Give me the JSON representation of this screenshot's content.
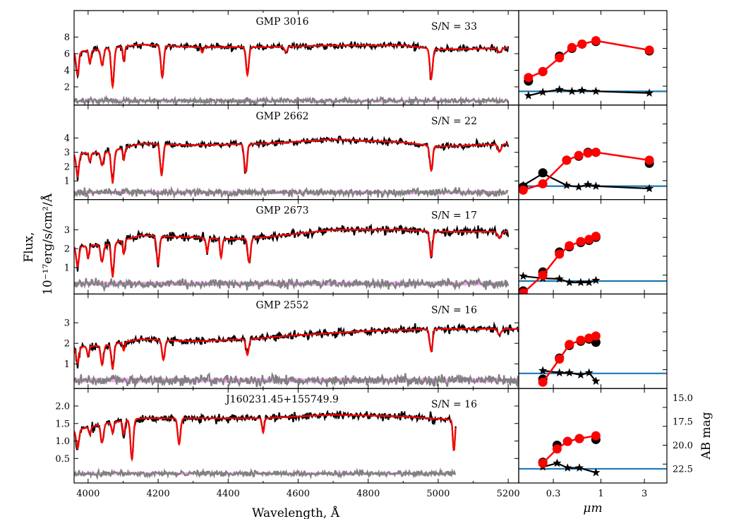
{
  "chart_data": {
    "type": "line",
    "ylabel_line1": "Flux,",
    "ylabel_line2": "10⁻¹⁷erg/s/cm²/Å",
    "xlabel_spec": "Wavelength, Å",
    "xlabel_sed": "μm",
    "ylabel_sed_right": "AB mag",
    "spectrum_xlim": [
      3960,
      5230
    ],
    "spectrum_xticks": [
      4000,
      4200,
      4400,
      4600,
      4800,
      5000,
      5200
    ],
    "sed_xlim": [
      0.125,
      5.3
    ],
    "sed_xticks": [
      {
        "value": 0.3,
        "label": "0.3"
      },
      {
        "value": 1,
        "label": "1"
      },
      {
        "value": 3,
        "label": "3"
      }
    ],
    "mag_ticks": [
      {
        "value": 15.0,
        "label": "15.0"
      },
      {
        "value": 17.5,
        "label": "17.5"
      },
      {
        "value": 20.0,
        "label": "20.0"
      },
      {
        "value": 22.5,
        "label": "22.5"
      }
    ],
    "colors": {
      "observed": "#000000",
      "model": "#ff0000",
      "residual": "#808080",
      "error": "#ee55ee",
      "level": "#1f77b4"
    },
    "panels": [
      {
        "name": "GMP 3016",
        "sn": "S/N = 33",
        "ylim": [
          -0.2,
          11.2
        ],
        "yticks": [
          {
            "value": 2,
            "label": "2"
          },
          {
            "value": 4,
            "label": "4"
          },
          {
            "value": 6,
            "label": "6"
          },
          {
            "value": 8,
            "label": "8"
          }
        ],
        "wave_range": [
          3960,
          5200
        ],
        "continuum": [
          [
            3960,
            6.2
          ],
          [
            4050,
            6.6
          ],
          [
            4150,
            7.1
          ],
          [
            4300,
            6.8
          ],
          [
            4500,
            6.8
          ],
          [
            4700,
            7.0
          ],
          [
            4900,
            7.0
          ],
          [
            5000,
            6.5
          ],
          [
            5200,
            6.7
          ]
        ],
        "absorption": [
          [
            3970,
            0.45,
            4
          ],
          [
            4005,
            0.25,
            3
          ],
          [
            4040,
            0.3,
            4
          ],
          [
            4070,
            0.7,
            4
          ],
          [
            4102,
            0.25,
            3
          ],
          [
            4212,
            0.55,
            4
          ],
          [
            4326,
            0.1,
            3
          ],
          [
            4455,
            0.5,
            4
          ],
          [
            4565,
            0.1,
            4
          ],
          [
            4980,
            0.55,
            4
          ],
          [
            5175,
            0.08,
            5
          ]
        ],
        "noise": 0.22,
        "resid_level": 0.3,
        "resid_noise": 0.25,
        "seed": 11,
        "sed_ylim": [
          0,
          11
        ],
        "sed_model": [
          [
            0.16,
            3.2
          ],
          [
            0.23,
            3.9
          ],
          [
            0.35,
            5.5
          ],
          [
            0.48,
            6.7
          ],
          [
            0.62,
            7.1
          ],
          [
            0.88,
            7.5
          ],
          [
            3.4,
            6.4
          ]
        ],
        "sed_obs": [
          [
            0.16,
            2.8
          ],
          [
            0.23,
            3.9
          ],
          [
            0.35,
            5.7
          ],
          [
            0.48,
            6.6
          ],
          [
            0.62,
            7.1
          ],
          [
            0.88,
            7.4
          ],
          [
            3.4,
            6.3
          ]
        ],
        "sed_star": [
          [
            0.16,
            1.1
          ],
          [
            0.23,
            1.5
          ],
          [
            0.35,
            1.8
          ],
          [
            0.48,
            1.6
          ],
          [
            0.62,
            1.7
          ],
          [
            0.88,
            1.6
          ],
          [
            3.4,
            1.4
          ]
        ],
        "sed_level": 1.6
      },
      {
        "name": "GMP 2662",
        "sn": "S/N = 22",
        "ylim": [
          -0.3,
          6.3
        ],
        "yticks": [
          {
            "value": 1,
            "label": "1"
          },
          {
            "value": 2,
            "label": "2"
          },
          {
            "value": 3,
            "label": "3"
          },
          {
            "value": 4,
            "label": "4"
          }
        ],
        "wave_range": [
          3960,
          5200
        ],
        "continuum": [
          [
            3960,
            2.9
          ],
          [
            4050,
            3.0
          ],
          [
            4150,
            3.6
          ],
          [
            4300,
            3.5
          ],
          [
            4500,
            3.6
          ],
          [
            4700,
            3.9
          ],
          [
            4900,
            3.7
          ],
          [
            5000,
            3.4
          ],
          [
            5200,
            3.6
          ]
        ],
        "absorption": [
          [
            3970,
            0.55,
            4
          ],
          [
            4005,
            0.2,
            3
          ],
          [
            4040,
            0.3,
            4
          ],
          [
            4070,
            0.7,
            4
          ],
          [
            4102,
            0.25,
            3
          ],
          [
            4210,
            0.6,
            4
          ],
          [
            4450,
            0.55,
            4
          ],
          [
            4980,
            0.5,
            4
          ],
          [
            5175,
            0.15,
            5
          ]
        ],
        "noise": 0.14,
        "resid_level": 0.2,
        "resid_noise": 0.18,
        "seed": 23,
        "sed_ylim": [
          0,
          6
        ],
        "sed_model": [
          [
            0.14,
            0.6
          ],
          [
            0.23,
            1.0
          ],
          [
            0.42,
            2.5
          ],
          [
            0.57,
            2.8
          ],
          [
            0.72,
            2.95
          ],
          [
            0.88,
            3.0
          ],
          [
            3.4,
            2.5
          ]
        ],
        "sed_obs": [
          [
            0.14,
            0.8
          ],
          [
            0.23,
            1.7
          ],
          [
            0.42,
            2.5
          ],
          [
            0.57,
            2.75
          ],
          [
            0.72,
            3.0
          ],
          [
            0.88,
            3.0
          ],
          [
            3.4,
            2.3
          ]
        ],
        "sed_star": [
          [
            0.14,
            0.9
          ],
          [
            0.23,
            1.65
          ],
          [
            0.42,
            0.9
          ],
          [
            0.57,
            0.8
          ],
          [
            0.72,
            0.95
          ],
          [
            0.88,
            0.85
          ],
          [
            3.4,
            0.7
          ]
        ],
        "sed_level": 0.85
      },
      {
        "name": "GMP 2673",
        "sn": "S/N = 17",
        "ylim": [
          -0.4,
          4.6
        ],
        "yticks": [
          {
            "value": 1,
            "label": "1"
          },
          {
            "value": 2,
            "label": "2"
          },
          {
            "value": 3,
            "label": "3"
          }
        ],
        "wave_range": [
          3960,
          5200
        ],
        "continuum": [
          [
            3960,
            2.1
          ],
          [
            4050,
            2.2
          ],
          [
            4150,
            2.7
          ],
          [
            4300,
            2.6
          ],
          [
            4400,
            2.5
          ],
          [
            4500,
            2.6
          ],
          [
            4700,
            3.0
          ],
          [
            4900,
            3.0
          ],
          [
            5000,
            2.9
          ],
          [
            5200,
            2.9
          ]
        ],
        "absorption": [
          [
            3970,
            0.5,
            4
          ],
          [
            4000,
            0.3,
            3
          ],
          [
            4040,
            0.4,
            4
          ],
          [
            4070,
            0.75,
            4
          ],
          [
            4102,
            0.3,
            3
          ],
          [
            4200,
            0.55,
            4
          ],
          [
            4340,
            0.3,
            3
          ],
          [
            4380,
            0.4,
            3
          ],
          [
            4460,
            0.5,
            4
          ],
          [
            4980,
            0.45,
            4
          ],
          [
            5175,
            0.12,
            5
          ]
        ],
        "noise": 0.14,
        "resid_level": 0.15,
        "resid_noise": 0.17,
        "seed": 37,
        "sed_ylim": [
          0,
          4.5
        ],
        "sed_model": [
          [
            0.14,
            0.05
          ],
          [
            0.23,
            0.9
          ],
          [
            0.35,
            1.9
          ],
          [
            0.45,
            2.3
          ],
          [
            0.6,
            2.5
          ],
          [
            0.74,
            2.6
          ],
          [
            0.88,
            2.75
          ]
        ],
        "sed_obs": [
          [
            0.14,
            0.15
          ],
          [
            0.23,
            1.05
          ],
          [
            0.35,
            2.0
          ],
          [
            0.45,
            2.25
          ],
          [
            0.6,
            2.45
          ],
          [
            0.74,
            2.55
          ],
          [
            0.88,
            2.7
          ]
        ],
        "sed_star": [
          [
            0.14,
            0.85
          ],
          [
            0.23,
            0.75
          ],
          [
            0.35,
            0.72
          ],
          [
            0.45,
            0.55
          ],
          [
            0.6,
            0.55
          ],
          [
            0.74,
            0.55
          ],
          [
            0.88,
            0.65
          ]
        ],
        "sed_level": 0.62
      },
      {
        "name": "GMP 2552",
        "sn": "S/N = 16",
        "ylim": [
          -0.2,
          4.4
        ],
        "yticks": [
          {
            "value": 1,
            "label": "1"
          },
          {
            "value": 2,
            "label": "2"
          },
          {
            "value": 3,
            "label": "3"
          }
        ],
        "wave_range": [
          3960,
          5230
        ],
        "continuum": [
          [
            3960,
            1.8
          ],
          [
            4050,
            1.9
          ],
          [
            4150,
            2.2
          ],
          [
            4300,
            2.1
          ],
          [
            4450,
            2.2
          ],
          [
            4600,
            2.4
          ],
          [
            4800,
            2.6
          ],
          [
            5000,
            2.7
          ],
          [
            5230,
            2.7
          ]
        ],
        "absorption": [
          [
            3970,
            0.45,
            4
          ],
          [
            4000,
            0.25,
            3
          ],
          [
            4040,
            0.5,
            4
          ],
          [
            4070,
            0.6,
            4
          ],
          [
            4102,
            0.2,
            3
          ],
          [
            4215,
            0.45,
            4
          ],
          [
            4455,
            0.35,
            4
          ],
          [
            4980,
            0.4,
            4
          ],
          [
            5175,
            0.1,
            5
          ]
        ],
        "noise": 0.12,
        "resid_level": 0.2,
        "resid_noise": 0.17,
        "seed": 51,
        "sed_ylim": [
          0,
          4.5
        ],
        "sed_model": [
          [
            0.23,
            0.3
          ],
          [
            0.35,
            1.4
          ],
          [
            0.45,
            2.1
          ],
          [
            0.6,
            2.3
          ],
          [
            0.74,
            2.4
          ],
          [
            0.88,
            2.5
          ]
        ],
        "sed_obs": [
          [
            0.23,
            0.45
          ],
          [
            0.35,
            1.45
          ],
          [
            0.45,
            2.05
          ],
          [
            0.6,
            2.25
          ],
          [
            0.74,
            2.35
          ],
          [
            0.88,
            2.2
          ]
        ],
        "sed_star": [
          [
            0.23,
            0.85
          ],
          [
            0.35,
            0.75
          ],
          [
            0.45,
            0.75
          ],
          [
            0.6,
            0.65
          ],
          [
            0.74,
            0.75
          ],
          [
            0.88,
            0.35
          ]
        ],
        "sed_level": 0.72
      },
      {
        "name": "J160231.45+155749.9",
        "sn": "S/N = 16",
        "ylim": [
          -0.2,
          2.5
        ],
        "yticks": [
          {
            "value": 0.5,
            "label": "0.5"
          },
          {
            "value": 1.0,
            "label": "1.0"
          },
          {
            "value": 1.5,
            "label": "1.5"
          },
          {
            "value": 2.0,
            "label": "2.0"
          }
        ],
        "wave_range": [
          3960,
          5050
        ],
        "continuum": [
          [
            3960,
            1.3
          ],
          [
            4050,
            1.5
          ],
          [
            4150,
            1.65
          ],
          [
            4300,
            1.65
          ],
          [
            4500,
            1.65
          ],
          [
            4700,
            1.75
          ],
          [
            4900,
            1.7
          ],
          [
            5050,
            1.6
          ]
        ],
        "absorption": [
          [
            3970,
            0.4,
            4
          ],
          [
            4005,
            0.15,
            3
          ],
          [
            4040,
            0.35,
            4
          ],
          [
            4070,
            0.2,
            3
          ],
          [
            4102,
            0.25,
            3
          ],
          [
            4125,
            0.7,
            4
          ],
          [
            4260,
            0.45,
            4
          ],
          [
            4500,
            0.25,
            3
          ],
          [
            5045,
            0.55,
            3
          ]
        ],
        "noise": 0.07,
        "resid_level": 0.07,
        "resid_noise": 0.06,
        "seed": 67,
        "sed_ylim": [
          24.0,
          14.0
        ],
        "sed_model": [
          [
            0.23,
            21.9
          ],
          [
            0.33,
            20.4
          ],
          [
            0.43,
            19.6
          ],
          [
            0.58,
            19.3
          ],
          [
            0.88,
            19.0
          ]
        ],
        "sed_obs": [
          [
            0.23,
            21.8
          ],
          [
            0.33,
            20.0
          ],
          [
            0.43,
            19.6
          ],
          [
            0.58,
            19.3
          ],
          [
            0.88,
            19.4
          ]
        ],
        "sed_star": [
          [
            0.23,
            22.3
          ],
          [
            0.33,
            21.9
          ],
          [
            0.43,
            22.4
          ],
          [
            0.58,
            22.4
          ],
          [
            0.88,
            22.9
          ]
        ],
        "sed_level": 22.5
      }
    ]
  }
}
